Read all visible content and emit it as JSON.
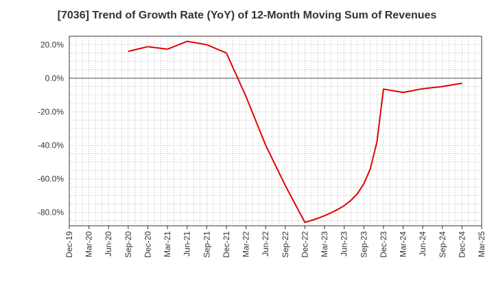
{
  "chart_data": {
    "type": "line",
    "title": "[7036]  Trend of Growth Rate (YoY) of 12-Month Moving Sum of Revenues",
    "xlabel": "",
    "ylabel": "",
    "x_tick_labels": [
      "Dec-19",
      "Mar-20",
      "Jun-20",
      "Sep-20",
      "Dec-20",
      "Mar-21",
      "Jun-21",
      "Sep-21",
      "Dec-21",
      "Mar-22",
      "Jun-22",
      "Sep-22",
      "Dec-22",
      "Mar-23",
      "Jun-23",
      "Sep-23",
      "Dec-23",
      "Mar-24",
      "Jun-24",
      "Sep-24",
      "Dec-24",
      "Mar-25"
    ],
    "y_ticks": [
      20,
      0,
      -20,
      -40,
      -60,
      -80
    ],
    "y_tick_labels": [
      "20.0%",
      "0.0%",
      "-20.0%",
      "-40.0%",
      "-60.0%",
      "-80.0%"
    ],
    "ylim": [
      -88,
      25
    ],
    "grid": true,
    "series": [
      {
        "color": "#e00000",
        "points": [
          {
            "x": "Sep-20",
            "y": 16.0
          },
          {
            "x": "Dec-20",
            "y": 18.8
          },
          {
            "x": "Mar-21",
            "y": 17.3
          },
          {
            "x": "Jun-21",
            "y": 22.0
          },
          {
            "x": "Sep-21",
            "y": 20.0
          },
          {
            "x": "Dec-21",
            "y": 15.0
          },
          {
            "x": "Mar-22",
            "y": -11.0
          },
          {
            "x": "Jun-22",
            "y": -40.0
          },
          {
            "x": "Sep-22",
            "y": -64.0
          },
          {
            "x": "Dec-22",
            "y": -86.0
          },
          {
            "x": "Jan-23",
            "y": -84.8
          },
          {
            "x": "Feb-23",
            "y": -83.5
          },
          {
            "x": "Mar-23",
            "y": -82.0
          },
          {
            "x": "Apr-23",
            "y": -80.3
          },
          {
            "x": "May-23",
            "y": -78.3
          },
          {
            "x": "Jun-23",
            "y": -76.0
          },
          {
            "x": "Jul-23",
            "y": -73.0
          },
          {
            "x": "Aug-23",
            "y": -69.0
          },
          {
            "x": "Sep-23",
            "y": -63.0
          },
          {
            "x": "Oct-23",
            "y": -54.0
          },
          {
            "x": "Nov-23",
            "y": -38.0
          },
          {
            "x": "Dec-23",
            "y": -6.5
          },
          {
            "x": "Mar-24",
            "y": -8.5
          },
          {
            "x": "Jun-24",
            "y": -6.3
          },
          {
            "x": "Sep-24",
            "y": -5.0
          },
          {
            "x": "Dec-24",
            "y": -3.0
          }
        ]
      }
    ]
  }
}
